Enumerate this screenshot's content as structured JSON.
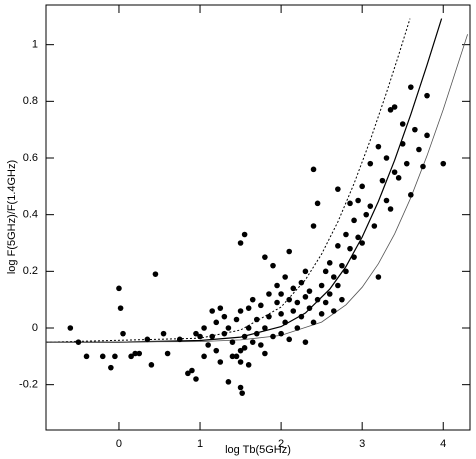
{
  "chart_data": {
    "type": "scatter",
    "xlabel": "log Tb(5GHz)",
    "ylabel": "log F(5GHz)/F(1.4GHz)",
    "xlim": [
      -0.9,
      4.33
    ],
    "ylim": [
      -0.36,
      1.14
    ],
    "xticks": [
      0,
      1,
      2,
      3,
      4
    ],
    "yticks": [
      -0.2,
      0,
      0.2,
      0.4,
      0.6,
      0.8,
      1
    ],
    "color": "#000000",
    "points": {
      "x": [
        -0.6,
        -0.5,
        -0.4,
        -0.2,
        -0.1,
        -0.05,
        0,
        0.02,
        0.05,
        0.15,
        0.2,
        0.25,
        0.35,
        0.4,
        0.45,
        0.55,
        0.6,
        0.75,
        0.85,
        0.9,
        0.95,
        0.95,
        1.0,
        1.05,
        1.05,
        1.1,
        1.15,
        1.15,
        1.2,
        1.2,
        1.25,
        1.25,
        1.3,
        1.3,
        1.35,
        1.35,
        1.4,
        1.4,
        1.45,
        1.45,
        1.5,
        1.5,
        1.5,
        1.5,
        1.5,
        1.52,
        1.55,
        1.55,
        1.55,
        1.6,
        1.6,
        1.6,
        1.65,
        1.65,
        1.7,
        1.7,
        1.75,
        1.75,
        1.8,
        1.8,
        1.8,
        1.85,
        1.85,
        1.9,
        1.9,
        1.95,
        1.95,
        2.0,
        2.0,
        2.0,
        2.05,
        2.05,
        2.1,
        2.1,
        2.1,
        2.15,
        2.15,
        2.2,
        2.2,
        2.25,
        2.25,
        2.3,
        2.3,
        2.3,
        2.35,
        2.35,
        2.4,
        2.4,
        2.4,
        2.45,
        2.45,
        2.5,
        2.5,
        2.55,
        2.55,
        2.6,
        2.6,
        2.65,
        2.65,
        2.7,
        2.7,
        2.7,
        2.75,
        2.75,
        2.8,
        2.8,
        2.85,
        2.85,
        2.9,
        2.9,
        2.95,
        2.95,
        3.0,
        3.0,
        3.05,
        3.1,
        3.1,
        3.15,
        3.2,
        3.2,
        3.25,
        3.3,
        3.3,
        3.35,
        3.35,
        3.4,
        3.4,
        3.45,
        3.5,
        3.5,
        3.55,
        3.6,
        3.6,
        3.65,
        3.7,
        3.75,
        3.8,
        3.8,
        4.0
      ],
      "y": [
        0.0,
        -0.05,
        -0.1,
        -0.1,
        -0.14,
        -0.1,
        0.14,
        0.07,
        -0.02,
        -0.1,
        -0.09,
        -0.09,
        -0.04,
        -0.13,
        0.19,
        -0.02,
        -0.09,
        -0.04,
        -0.16,
        -0.15,
        -0.18,
        -0.02,
        -0.03,
        0.0,
        -0.1,
        -0.06,
        -0.03,
        0.06,
        0.02,
        -0.08,
        0.07,
        -0.12,
        -0.02,
        0.04,
        -0.19,
        0.0,
        -0.1,
        -0.05,
        0.03,
        -0.1,
        -0.12,
        -0.08,
        0.06,
        0.3,
        -0.21,
        -0.23,
        0.33,
        -0.03,
        -0.07,
        0.0,
        0.07,
        -0.13,
        -0.05,
        0.1,
        0.03,
        -0.02,
        0.08,
        -0.06,
        0.25,
        0.0,
        -0.09,
        0.12,
        0.04,
        0.22,
        -0.03,
        0.09,
        0.15,
        0.05,
        0.12,
        -0.02,
        0.18,
        0.02,
        0.1,
        0.27,
        -0.04,
        0.14,
        0.06,
        0.0,
        0.09,
        0.16,
        0.04,
        0.11,
        0.2,
        -0.05,
        0.07,
        0.13,
        0.56,
        0.36,
        0.02,
        0.44,
        0.1,
        0.15,
        0.05,
        0.2,
        0.09,
        0.12,
        0.23,
        0.18,
        0.06,
        0.49,
        0.29,
        0.15,
        0.22,
        0.1,
        0.33,
        0.2,
        0.44,
        0.28,
        0.38,
        0.25,
        0.45,
        0.32,
        0.5,
        0.3,
        0.4,
        0.43,
        0.58,
        0.36,
        0.64,
        0.18,
        0.52,
        0.45,
        0.6,
        0.77,
        0.42,
        0.78,
        0.55,
        0.53,
        0.65,
        0.72,
        0.58,
        0.85,
        0.47,
        0.7,
        0.63,
        0.57,
        0.82,
        0.68,
        0.58
      ]
    },
    "lines": [
      {
        "style": "dotted",
        "color": "#000000",
        "x": [
          -0.9,
          1,
          1.5,
          2,
          2.3,
          2.5,
          2.7,
          2.9,
          3.1,
          3.3,
          3.45,
          3.59
        ],
        "y": [
          -0.05,
          -0.036,
          -0.007,
          0.074,
          0.17,
          0.261,
          0.375,
          0.51,
          0.663,
          0.831,
          0.964,
          1.092
        ]
      },
      {
        "style": "solid",
        "color": "#000000",
        "x": [
          -0.9,
          0,
          1,
          1.5,
          2,
          2.3,
          2.6,
          2.8,
          3.0,
          3.2,
          3.4,
          3.6,
          3.8,
          3.98
        ],
        "y": [
          -0.05,
          -0.05,
          -0.044,
          -0.032,
          0.005,
          0.053,
          0.137,
          0.217,
          0.321,
          0.447,
          0.592,
          0.754,
          0.928,
          1.092
        ]
      },
      {
        "style": "thin",
        "color": "#555555",
        "x": [
          -0.9,
          1,
          1.5,
          2,
          2.5,
          2.8,
          3.0,
          3.2,
          3.4,
          3.6,
          3.8,
          4.0,
          4.3
        ],
        "y": [
          -0.05,
          -0.048,
          -0.042,
          -0.026,
          0.021,
          0.082,
          0.144,
          0.227,
          0.332,
          0.46,
          0.608,
          0.771,
          1.037
        ]
      }
    ]
  }
}
